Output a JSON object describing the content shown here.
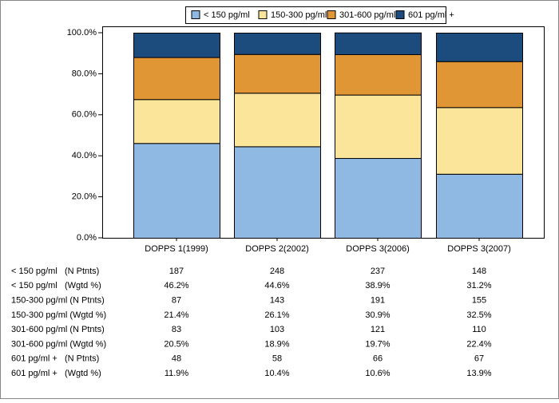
{
  "chart_data": {
    "type": "stacked_bar",
    "categories": [
      "DOPPS 1(1999)",
      "DOPPS 2(2002)",
      "DOPPS 3(2006)",
      "DOPPS 3(2007)"
    ],
    "ylim": [
      0,
      100
    ],
    "yticks": [
      {
        "value": 0,
        "label": "0.0%"
      },
      {
        "value": 20,
        "label": "20.0%"
      },
      {
        "value": 40,
        "label": "40.0%"
      },
      {
        "value": 60,
        "label": "60.0%"
      },
      {
        "value": 80,
        "label": "80.0%"
      },
      {
        "value": 100,
        "label": "100.0%"
      }
    ],
    "legend": "top",
    "series": [
      {
        "name": "< 150 pg/ml",
        "color": "#8fb9e3",
        "values": [
          46.2,
          44.6,
          38.9,
          31.2
        ],
        "value_labels": [
          "46.2%",
          "44.6%",
          "38.9%",
          "31.2%"
        ],
        "n_label": "< 150 pg/ml   (N Ptnts)",
        "n": [
          187,
          248,
          237,
          148
        ],
        "pct_label": "< 150 pg/ml   (Wgtd %)"
      },
      {
        "name": "150-300 pg/ml",
        "color": "#fbe59a",
        "values": [
          21.4,
          26.1,
          30.9,
          32.5
        ],
        "value_labels": [
          "21.4%",
          "26.1%",
          "30.9%",
          "32.5%"
        ],
        "n_label": "150-300 pg/ml (N Ptnts)",
        "n": [
          87,
          143,
          191,
          155
        ],
        "pct_label": "150-300 pg/ml (Wgtd %)"
      },
      {
        "name": "301-600 pg/ml",
        "color": "#e09634",
        "values": [
          20.5,
          18.9,
          19.7,
          22.4
        ],
        "value_labels": [
          "20.5%",
          "18.9%",
          "19.7%",
          "22.4%"
        ],
        "n_label": "301-600 pg/ml (N Ptnts)",
        "n": [
          83,
          103,
          121,
          110
        ],
        "pct_label": "301-600 pg/ml (Wgtd %)"
      },
      {
        "name": "601 pg/ml +",
        "color": "#1c4b7e",
        "values": [
          11.9,
          10.4,
          10.6,
          13.9
        ],
        "value_labels": [
          "11.9%",
          "10.4%",
          "10.6%",
          "13.9%"
        ],
        "n_label": "601 pg/ml +   (N Ptnts)",
        "n": [
          48,
          58,
          66,
          67
        ],
        "pct_label": "601 pg/ml +   (Wgtd %)"
      }
    ]
  }
}
